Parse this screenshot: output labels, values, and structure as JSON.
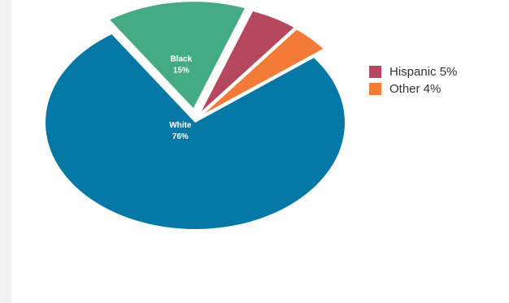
{
  "chart_data": {
    "type": "pie",
    "exploded": true,
    "slices": [
      {
        "label": "White",
        "value": 76,
        "value_label": "76%",
        "color": "#0578a6"
      },
      {
        "label": "Black",
        "value": 15,
        "value_label": "15%",
        "color": "#44ab85"
      },
      {
        "label": "Hispanic",
        "value": 5,
        "value_label": "5%",
        "color": "#b5485e"
      },
      {
        "label": "Other",
        "value": 4,
        "value_label": "4%",
        "color": "#f47a37"
      }
    ],
    "legend": {
      "placement": "right",
      "items": [
        {
          "text": "Hispanic 5%",
          "color": "#b5485e"
        },
        {
          "text": "Other 4%",
          "color": "#f47a37"
        }
      ]
    }
  }
}
